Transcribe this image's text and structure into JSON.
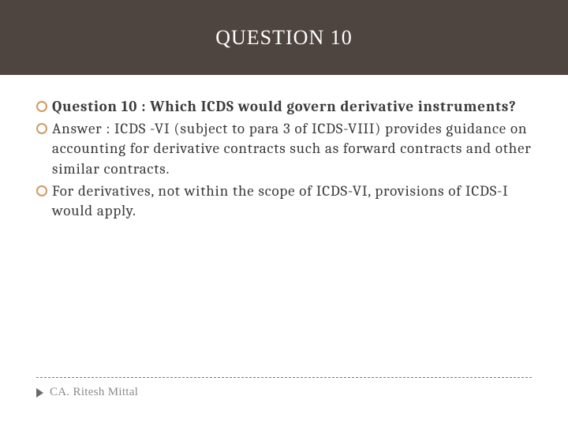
{
  "header": {
    "title": "QUESTION 10",
    "bg_color": "#4f4540",
    "title_color": "#ffffff",
    "title_fontsize": 26
  },
  "bullets": {
    "marker_color": "#d09a63",
    "marker_border_width": 2.5,
    "text_color": "#3b3b3b",
    "text_fontsize": 19,
    "items": [
      {
        "bold": true,
        "text": "Question 10 : Which ICDS would govern derivative instruments?"
      },
      {
        "bold": false,
        "text": "Answer : ICDS -VI (subject to para 3 of ICDS-VIII) provides guidance on accounting for derivative contracts such as forward contracts and other similar contracts."
      },
      {
        "bold": false,
        "text": "For derivatives, not within the scope of ICDS-VI, provisions of ICDS-I would apply."
      }
    ]
  },
  "footer": {
    "dash_color": "#7a7a7a",
    "play_color": "#6a6a6a",
    "author_text": "CA. Ritesh Mittal",
    "author_color": "#8a8a8a",
    "author_fontsize": 15
  }
}
